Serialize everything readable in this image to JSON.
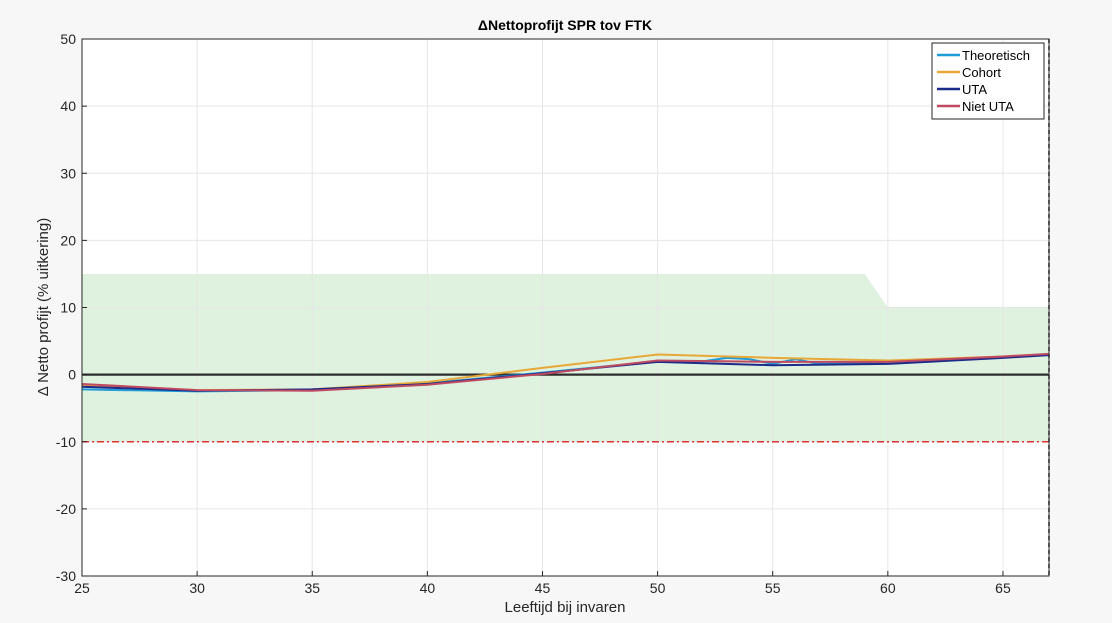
{
  "chart_data": {
    "type": "line",
    "title": "ΔNettoprofijt SPR tov FTK",
    "xlabel": "Leeftijd bij invaren",
    "ylabel": "Δ Netto profijt (% uitkering)",
    "xlim": [
      25,
      67
    ],
    "ylim": [
      -30,
      50
    ],
    "xticks": [
      25,
      30,
      35,
      40,
      45,
      50,
      55,
      60,
      65
    ],
    "yticks": [
      -30,
      -20,
      -10,
      0,
      10,
      20,
      30,
      40,
      50
    ],
    "grid": true,
    "legend_position": "top-right",
    "band": {
      "color": "#dff2df",
      "upper": [
        [
          25,
          15
        ],
        [
          59,
          15
        ],
        [
          60,
          10
        ],
        [
          67,
          10
        ]
      ],
      "lower": -10
    },
    "reference_lines": [
      {
        "y": 0,
        "color": "#2e2e2e",
        "style": "solid"
      },
      {
        "y": -10,
        "color": "#e03030",
        "style": "dashdot"
      },
      {
        "x": 67,
        "color": "#333333",
        "style": "dashed"
      }
    ],
    "series": [
      {
        "name": "Theoretisch",
        "color": "#1f9bd8",
        "x": [
          25,
          30,
          35,
          40,
          45,
          50,
          52,
          53,
          54,
          55,
          56,
          57,
          60,
          65,
          67
        ],
        "y": [
          -2.2,
          -2.5,
          -2.3,
          -1.3,
          0.3,
          2.0,
          2.0,
          2.5,
          2.3,
          1.6,
          2.3,
          1.6,
          1.8,
          2.6,
          3.0
        ]
      },
      {
        "name": "Cohort",
        "color": "#e8a838",
        "x": [
          25,
          30,
          35,
          40,
          45,
          50,
          55,
          60,
          65,
          67
        ],
        "y": [
          -1.5,
          -2.3,
          -2.2,
          -1.1,
          1.0,
          3.0,
          2.5,
          2.1,
          2.7,
          3.0
        ]
      },
      {
        "name": "UTA",
        "color": "#1c2a8a",
        "x": [
          25,
          30,
          35,
          40,
          45,
          50,
          55,
          60,
          65,
          67
        ],
        "y": [
          -1.8,
          -2.4,
          -2.2,
          -1.4,
          0.2,
          1.9,
          1.4,
          1.6,
          2.5,
          2.9
        ]
      },
      {
        "name": "Niet UTA",
        "color": "#c04a60",
        "x": [
          25,
          30,
          35,
          40,
          45,
          50,
          55,
          60,
          65,
          67
        ],
        "y": [
          -1.4,
          -2.3,
          -2.4,
          -1.5,
          0.1,
          2.1,
          1.9,
          1.9,
          2.7,
          3.1
        ]
      }
    ]
  }
}
